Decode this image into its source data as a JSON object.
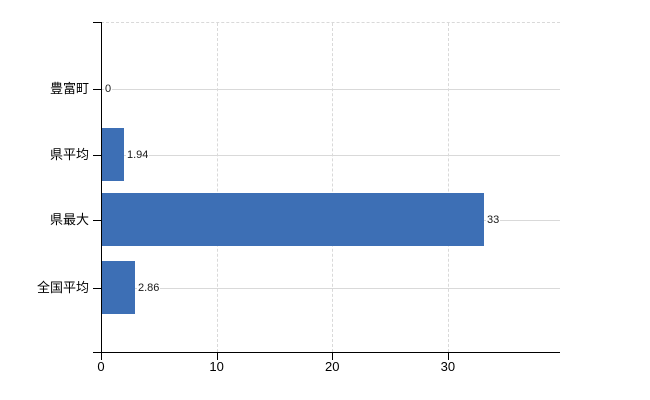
{
  "chart_data": {
    "type": "bar",
    "orientation": "horizontal",
    "categories": [
      "豊富町",
      "県平均",
      "県最大",
      "全国平均"
    ],
    "values": [
      0,
      1.94,
      33,
      2.86
    ],
    "value_labels": [
      "0",
      "1.94",
      "33",
      "2.86"
    ],
    "x_ticks": [
      0,
      10,
      20,
      30
    ],
    "x_tick_labels": [
      "0",
      "10",
      "20",
      "30"
    ],
    "xlim": [
      0,
      39.7
    ],
    "grid": true,
    "legend": false,
    "bar_color": "#3d6fb5",
    "gridline_color": "#d9d9d9",
    "axis_color": "#000000",
    "text_color": "#000000"
  }
}
